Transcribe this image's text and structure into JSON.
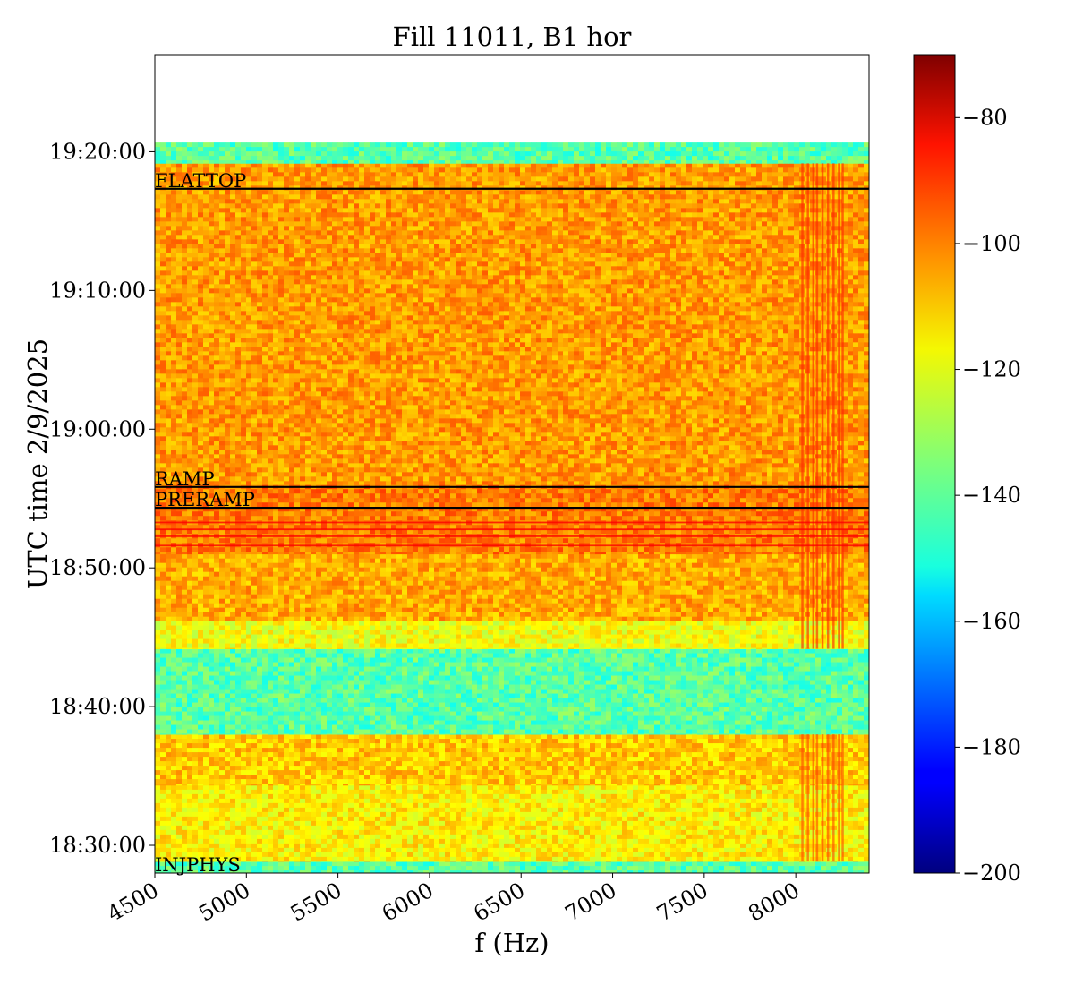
{
  "chart_data": {
    "type": "heatmap",
    "title": "Fill 11011, B1 hor",
    "xlabel": "f (Hz)",
    "ylabel": "UTC time 2/9/2025",
    "xlim": [
      4500,
      8400
    ],
    "ylim": [
      "18:28:00",
      "19:27:00"
    ],
    "x_ticks": [
      "4500",
      "5000",
      "5500",
      "6000",
      "6500",
      "7000",
      "7500",
      "8000"
    ],
    "y_ticks": [
      "18:30:00",
      "18:40:00",
      "18:50:00",
      "19:00:00",
      "19:10:00",
      "19:20:00"
    ],
    "data_extent_time": [
      "18:28:00",
      "19:20:40"
    ],
    "colorbar": {
      "colormap": "jet",
      "range": [
        -200,
        -70
      ],
      "ticks": [
        "−80",
        "−100",
        "−120",
        "−140",
        "−160",
        "−180",
        "−200"
      ]
    },
    "phase_markers": [
      {
        "label": "FLATTOP",
        "time": "19:17:20"
      },
      {
        "label": "RAMP",
        "time": "18:55:50"
      },
      {
        "label": "PRERAMP",
        "time": "18:54:20"
      },
      {
        "label": "INJPHYS",
        "time": "18:28:00"
      }
    ],
    "intensity_bands": [
      {
        "from": "18:28:00",
        "to": "18:28:50",
        "level_db": -140
      },
      {
        "from": "18:28:50",
        "to": "18:34:20",
        "level_db": -117
      },
      {
        "from": "18:34:20",
        "to": "18:38:00",
        "level_db": -112
      },
      {
        "from": "18:38:00",
        "to": "18:44:10",
        "level_db": -140
      },
      {
        "from": "18:44:10",
        "to": "18:46:10",
        "level_db": -120
      },
      {
        "from": "18:46:10",
        "to": "18:51:00",
        "level_db": -108
      },
      {
        "from": "18:51:00",
        "to": "18:56:00",
        "level_db": -102
      },
      {
        "from": "18:56:00",
        "to": "19:19:10",
        "level_db": -106
      },
      {
        "from": "19:19:10",
        "to": "19:20:40",
        "level_db": -140
      }
    ]
  }
}
